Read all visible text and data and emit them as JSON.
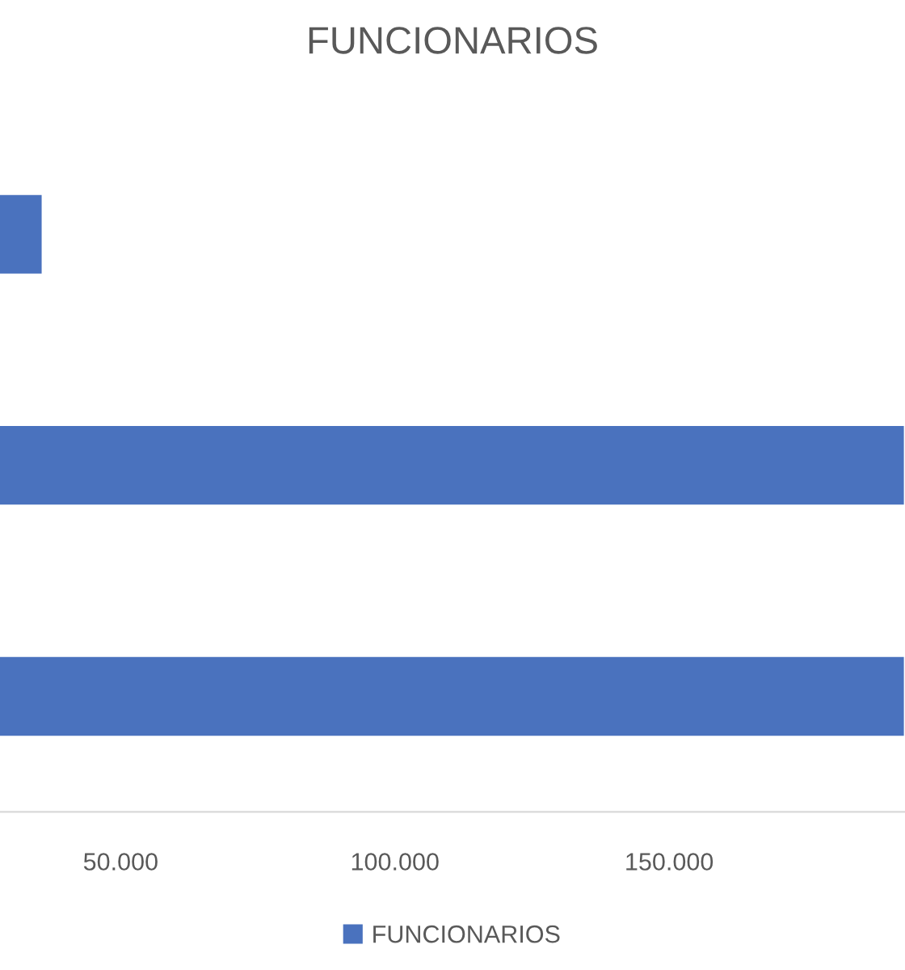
{
  "chart_data": {
    "type": "bar",
    "orientation": "horizontal",
    "title": "FUNCIONARIOS",
    "categories": [
      null,
      null,
      null
    ],
    "series": [
      {
        "name": "FUNCIONARIOS",
        "color": "#4a72be",
        "values": [
          35800,
          193000,
          193000
        ]
      }
    ],
    "xlim": [
      28000,
      193000
    ],
    "xticks": [
      {
        "value": 50000,
        "label": "50.000"
      },
      {
        "value": 100000,
        "label": "100.000"
      },
      {
        "value": 150000,
        "label": "150.000"
      }
    ],
    "grid": false,
    "legend": "bottom"
  }
}
